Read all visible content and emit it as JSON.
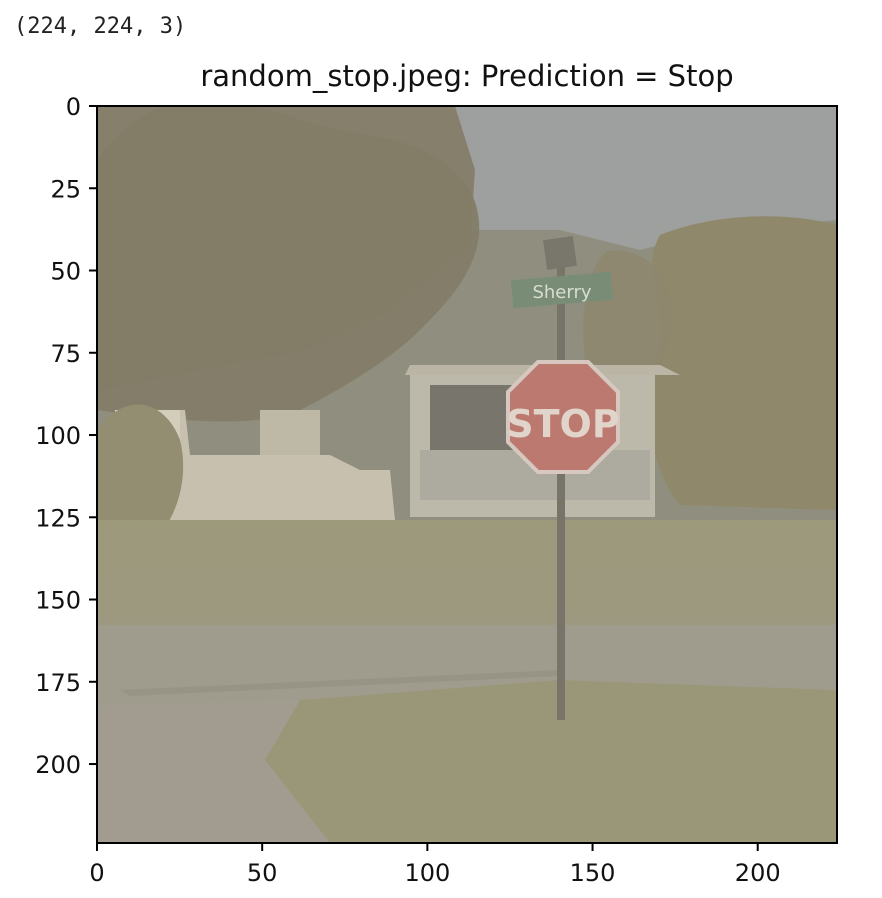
{
  "cell_output": {
    "shape_text": "(224, 224, 3)"
  },
  "plot": {
    "title": "random_stop.jpeg: Prediction = Stop",
    "image_description_icon": "stop-sign-street-photo",
    "image_sign_text": "STOP",
    "street_sign_text": "Sherry"
  },
  "chart_data": {
    "type": "image",
    "title": "random_stop.jpeg: Prediction = Stop",
    "xlim": [
      0,
      224
    ],
    "ylim": [
      224,
      0
    ],
    "x_ticks": [
      0,
      50,
      100,
      150,
      200
    ],
    "y_ticks": [
      0,
      25,
      50,
      75,
      100,
      125,
      150,
      175,
      200
    ],
    "x_tick_labels": [
      "0",
      "50",
      "100",
      "150",
      "200"
    ],
    "y_tick_labels": [
      "0",
      "25",
      "50",
      "75",
      "100",
      "125",
      "150",
      "175",
      "200"
    ],
    "grid": false
  },
  "colors": {
    "sky": "#8e9396",
    "tree": "#6f6753",
    "grass": "#8a8666",
    "road": "#8f8b7e",
    "stop_red": "#b5605a",
    "sign_green": "#5f7a62"
  }
}
